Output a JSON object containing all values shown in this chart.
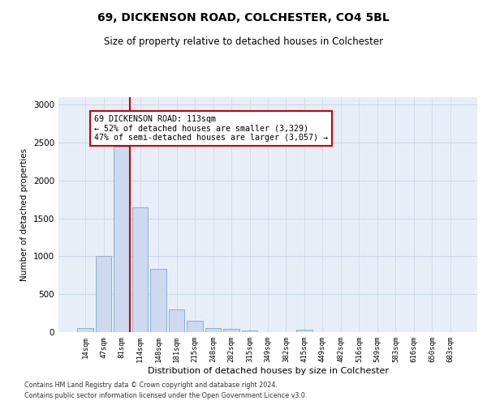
{
  "title1": "69, DICKENSON ROAD, COLCHESTER, CO4 5BL",
  "title2": "Size of property relative to detached houses in Colchester",
  "xlabel": "Distribution of detached houses by size in Colchester",
  "ylabel": "Number of detached properties",
  "categories": [
    "14sqm",
    "47sqm",
    "81sqm",
    "114sqm",
    "148sqm",
    "181sqm",
    "215sqm",
    "248sqm",
    "282sqm",
    "315sqm",
    "349sqm",
    "382sqm",
    "415sqm",
    "449sqm",
    "482sqm",
    "516sqm",
    "549sqm",
    "583sqm",
    "616sqm",
    "650sqm",
    "683sqm"
  ],
  "values": [
    55,
    1000,
    2450,
    1650,
    830,
    300,
    155,
    55,
    40,
    25,
    0,
    0,
    30,
    0,
    0,
    0,
    0,
    0,
    0,
    0,
    0
  ],
  "bar_color": "#ccd9ee",
  "bar_edge_color": "#7fa8cc",
  "annotation_line1": "69 DICKENSON ROAD: 113sqm",
  "annotation_line2": "← 52% of detached houses are smaller (3,329)",
  "annotation_line3": "47% of semi-detached houses are larger (3,057) →",
  "annotation_box_color": "#ffffff",
  "annotation_box_edge": "#cc0000",
  "vline_color": "#cc0000",
  "grid_color": "#ccd5e8",
  "background_color": "#e8eef8",
  "ylim": [
    0,
    3100
  ],
  "yticks": [
    0,
    500,
    1000,
    1500,
    2000,
    2500,
    3000
  ],
  "footnote1": "Contains HM Land Registry data © Crown copyright and database right 2024.",
  "footnote2": "Contains public sector information licensed under the Open Government Licence v3.0."
}
